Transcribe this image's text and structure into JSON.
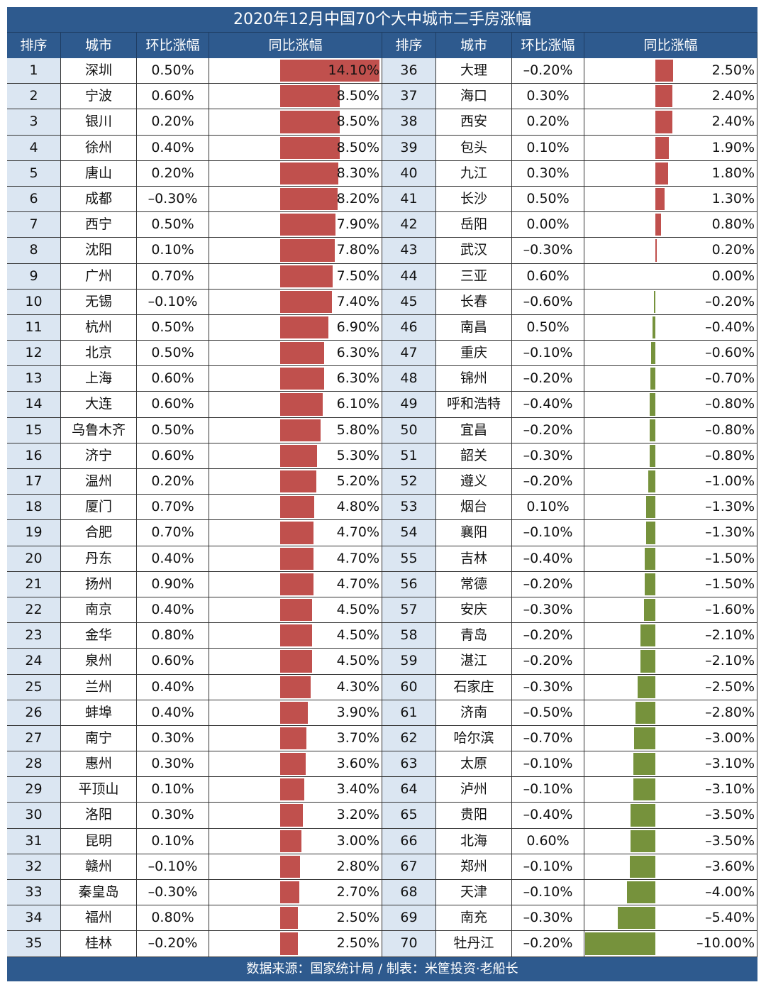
{
  "title": "2020年12月中国70个大中城市二手房涨幅",
  "headers": {
    "rank": "排序",
    "city": "城市",
    "mom": "环比涨幅",
    "yoy": "同比涨幅"
  },
  "footer": "数据来源：国家统计局 / 制表：米筐投资·老船长",
  "colors": {
    "positive": "#c0504d",
    "negative": "#76923c",
    "header_bg": "#2e5a8e",
    "rank_bg": "#dbe6f2"
  },
  "chart_data": {
    "type": "bar",
    "title": "2020年12月中国70个大中城市二手房涨幅",
    "xlabel": "城市",
    "ylabel": "同比涨幅 (%)",
    "columns": [
      "排序",
      "城市",
      "环比涨幅",
      "同比涨幅"
    ],
    "rows": [
      [
        1,
        "深圳",
        "0.50%",
        "14.10%"
      ],
      [
        2,
        "宁波",
        "0.60%",
        "8.50%"
      ],
      [
        3,
        "银川",
        "0.20%",
        "8.50%"
      ],
      [
        4,
        "徐州",
        "0.40%",
        "8.50%"
      ],
      [
        5,
        "唐山",
        "0.20%",
        "8.30%"
      ],
      [
        6,
        "成都",
        "-0.30%",
        "8.20%"
      ],
      [
        7,
        "西宁",
        "0.50%",
        "7.90%"
      ],
      [
        8,
        "沈阳",
        "0.10%",
        "7.80%"
      ],
      [
        9,
        "广州",
        "0.70%",
        "7.50%"
      ],
      [
        10,
        "无锡",
        "-0.10%",
        "7.40%"
      ],
      [
        11,
        "杭州",
        "0.50%",
        "6.90%"
      ],
      [
        12,
        "北京",
        "0.50%",
        "6.30%"
      ],
      [
        13,
        "上海",
        "0.60%",
        "6.30%"
      ],
      [
        14,
        "大连",
        "0.60%",
        "6.10%"
      ],
      [
        15,
        "乌鲁木齐",
        "0.50%",
        "5.80%"
      ],
      [
        16,
        "济宁",
        "0.60%",
        "5.30%"
      ],
      [
        17,
        "温州",
        "0.20%",
        "5.20%"
      ],
      [
        18,
        "厦门",
        "0.70%",
        "4.80%"
      ],
      [
        19,
        "合肥",
        "0.70%",
        "4.70%"
      ],
      [
        20,
        "丹东",
        "0.40%",
        "4.70%"
      ],
      [
        21,
        "扬州",
        "0.90%",
        "4.70%"
      ],
      [
        22,
        "南京",
        "0.40%",
        "4.50%"
      ],
      [
        23,
        "金华",
        "0.80%",
        "4.50%"
      ],
      [
        24,
        "泉州",
        "0.60%",
        "4.50%"
      ],
      [
        25,
        "兰州",
        "0.40%",
        "4.30%"
      ],
      [
        26,
        "蚌埠",
        "0.40%",
        "3.90%"
      ],
      [
        27,
        "南宁",
        "0.30%",
        "3.70%"
      ],
      [
        28,
        "惠州",
        "0.30%",
        "3.60%"
      ],
      [
        29,
        "平顶山",
        "0.10%",
        "3.40%"
      ],
      [
        30,
        "洛阳",
        "0.30%",
        "3.20%"
      ],
      [
        31,
        "昆明",
        "0.10%",
        "3.00%"
      ],
      [
        32,
        "赣州",
        "-0.10%",
        "2.80%"
      ],
      [
        33,
        "秦皇岛",
        "-0.30%",
        "2.70%"
      ],
      [
        34,
        "福州",
        "0.80%",
        "2.50%"
      ],
      [
        35,
        "桂林",
        "-0.20%",
        "2.50%"
      ],
      [
        36,
        "大理",
        "-0.20%",
        "2.50%"
      ],
      [
        37,
        "海口",
        "0.30%",
        "2.40%"
      ],
      [
        38,
        "西安",
        "0.20%",
        "2.40%"
      ],
      [
        39,
        "包头",
        "0.10%",
        "1.90%"
      ],
      [
        40,
        "九江",
        "0.30%",
        "1.80%"
      ],
      [
        41,
        "长沙",
        "0.50%",
        "1.30%"
      ],
      [
        42,
        "岳阳",
        "0.00%",
        "0.80%"
      ],
      [
        43,
        "武汉",
        "-0.30%",
        "0.20%"
      ],
      [
        44,
        "三亚",
        "0.60%",
        "0.00%"
      ],
      [
        45,
        "长春",
        "-0.60%",
        "-0.20%"
      ],
      [
        46,
        "南昌",
        "0.50%",
        "-0.40%"
      ],
      [
        47,
        "重庆",
        "-0.10%",
        "-0.60%"
      ],
      [
        48,
        "锦州",
        "-0.20%",
        "-0.70%"
      ],
      [
        49,
        "呼和浩特",
        "-0.40%",
        "-0.80%"
      ],
      [
        50,
        "宜昌",
        "-0.20%",
        "-0.80%"
      ],
      [
        51,
        "韶关",
        "-0.30%",
        "-0.80%"
      ],
      [
        52,
        "遵义",
        "-0.20%",
        "-1.00%"
      ],
      [
        53,
        "烟台",
        "0.10%",
        "-1.30%"
      ],
      [
        54,
        "襄阳",
        "-0.10%",
        "-1.30%"
      ],
      [
        55,
        "吉林",
        "-0.40%",
        "-1.50%"
      ],
      [
        56,
        "常德",
        "-0.20%",
        "-1.50%"
      ],
      [
        57,
        "安庆",
        "-0.30%",
        "-1.60%"
      ],
      [
        58,
        "青岛",
        "-0.20%",
        "-2.10%"
      ],
      [
        59,
        "湛江",
        "-0.20%",
        "-2.10%"
      ],
      [
        60,
        "石家庄",
        "-0.30%",
        "-2.50%"
      ],
      [
        61,
        "济南",
        "-0.50%",
        "-2.80%"
      ],
      [
        62,
        "哈尔滨",
        "-0.70%",
        "-3.00%"
      ],
      [
        63,
        "太原",
        "-0.10%",
        "-3.10%"
      ],
      [
        64,
        "泸州",
        "-0.10%",
        "-3.10%"
      ],
      [
        65,
        "贵阳",
        "-0.40%",
        "-3.50%"
      ],
      [
        66,
        "北海",
        "0.60%",
        "-3.50%"
      ],
      [
        67,
        "郑州",
        "-0.10%",
        "-3.60%"
      ],
      [
        68,
        "天津",
        "-0.10%",
        "-4.00%"
      ],
      [
        69,
        "南充",
        "-0.30%",
        "-5.40%"
      ],
      [
        70,
        "牡丹江",
        "-0.20%",
        "-10.00%"
      ]
    ]
  }
}
